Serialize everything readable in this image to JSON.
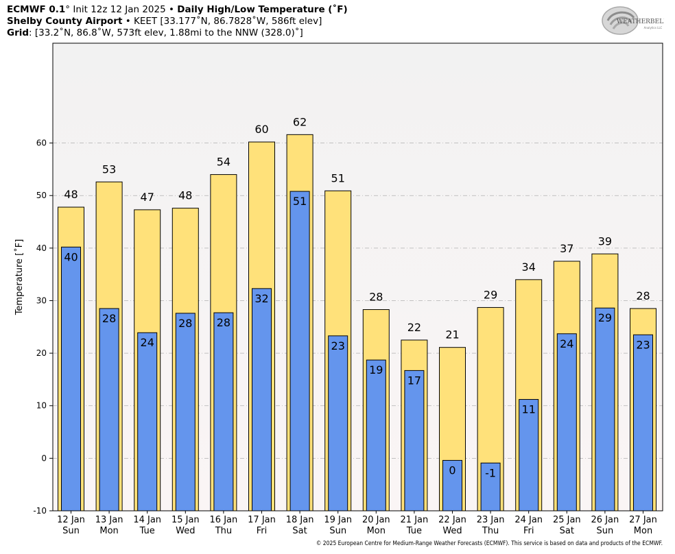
{
  "header": {
    "line1_model": "ECMWF 0.1",
    "line1_deg": "°",
    "line1_init": " Init 12z 12 Jan 2025 • ",
    "line1_product": "Daily High/Low Temperature (˚F)",
    "line2_station": "Shelby County Airport",
    "line2_rest": " • KEET [33.177˚N, 86.7828˚W, 586ft elev]",
    "line3_label": "Grid",
    "line3_rest": ": [33.2˚N, 86.8˚W, 573ft elev, 1.88mi to the NNW (328.0)˚]"
  },
  "logo": {
    "text": "WEATHERBELL",
    "subtext": "Analytics LLC"
  },
  "footer": {
    "copyright": "© 2025 European Centre for Medium-Range Weather Forecasts (ECMWF). This service is based on data and products of the ECMWF."
  },
  "colors": {
    "high": "#FFE17A",
    "low": "#6495ED",
    "plot_bg_top": "#f3f3f3",
    "plot_bg_bottom": "#faf5f5",
    "grid": "#b0b0b0"
  },
  "chart_data": {
    "type": "bar",
    "ylabel": "Temperature [˚F]",
    "xlabel": "",
    "ylim": [
      -10,
      79
    ],
    "yticks": [
      -10,
      0,
      10,
      20,
      30,
      40,
      50,
      60
    ],
    "grid": true,
    "categories": [
      {
        "date": "12 Jan",
        "day": "Sun"
      },
      {
        "date": "13 Jan",
        "day": "Mon"
      },
      {
        "date": "14 Jan",
        "day": "Tue"
      },
      {
        "date": "15 Jan",
        "day": "Wed"
      },
      {
        "date": "16 Jan",
        "day": "Thu"
      },
      {
        "date": "17 Jan",
        "day": "Fri"
      },
      {
        "date": "18 Jan",
        "day": "Sat"
      },
      {
        "date": "19 Jan",
        "day": "Sun"
      },
      {
        "date": "20 Jan",
        "day": "Mon"
      },
      {
        "date": "21 Jan",
        "day": "Tue"
      },
      {
        "date": "22 Jan",
        "day": "Wed"
      },
      {
        "date": "23 Jan",
        "day": "Thu"
      },
      {
        "date": "24 Jan",
        "day": "Fri"
      },
      {
        "date": "25 Jan",
        "day": "Sat"
      },
      {
        "date": "26 Jan",
        "day": "Sun"
      },
      {
        "date": "27 Jan",
        "day": "Mon"
      }
    ],
    "series": [
      {
        "name": "High",
        "values": [
          47.8,
          52.6,
          47.3,
          47.6,
          54.0,
          60.2,
          61.6,
          50.9,
          28.3,
          22.5,
          21.1,
          28.7,
          34.0,
          37.5,
          38.9,
          28.5
        ],
        "labels": [
          "48",
          "53",
          "47",
          "48",
          "54",
          "60",
          "62",
          "51",
          "28",
          "22",
          "21",
          "29",
          "34",
          "37",
          "39",
          "28"
        ]
      },
      {
        "name": "Low",
        "values": [
          40.2,
          28.5,
          23.9,
          27.6,
          27.7,
          32.3,
          50.8,
          23.3,
          18.7,
          16.7,
          -0.4,
          -0.9,
          11.2,
          23.7,
          28.6,
          23.5
        ],
        "labels": [
          "40",
          "28",
          "24",
          "28",
          "28",
          "32",
          "51",
          "23",
          "19",
          "17",
          "0",
          "-1",
          "11",
          "24",
          "29",
          "23"
        ]
      }
    ]
  }
}
